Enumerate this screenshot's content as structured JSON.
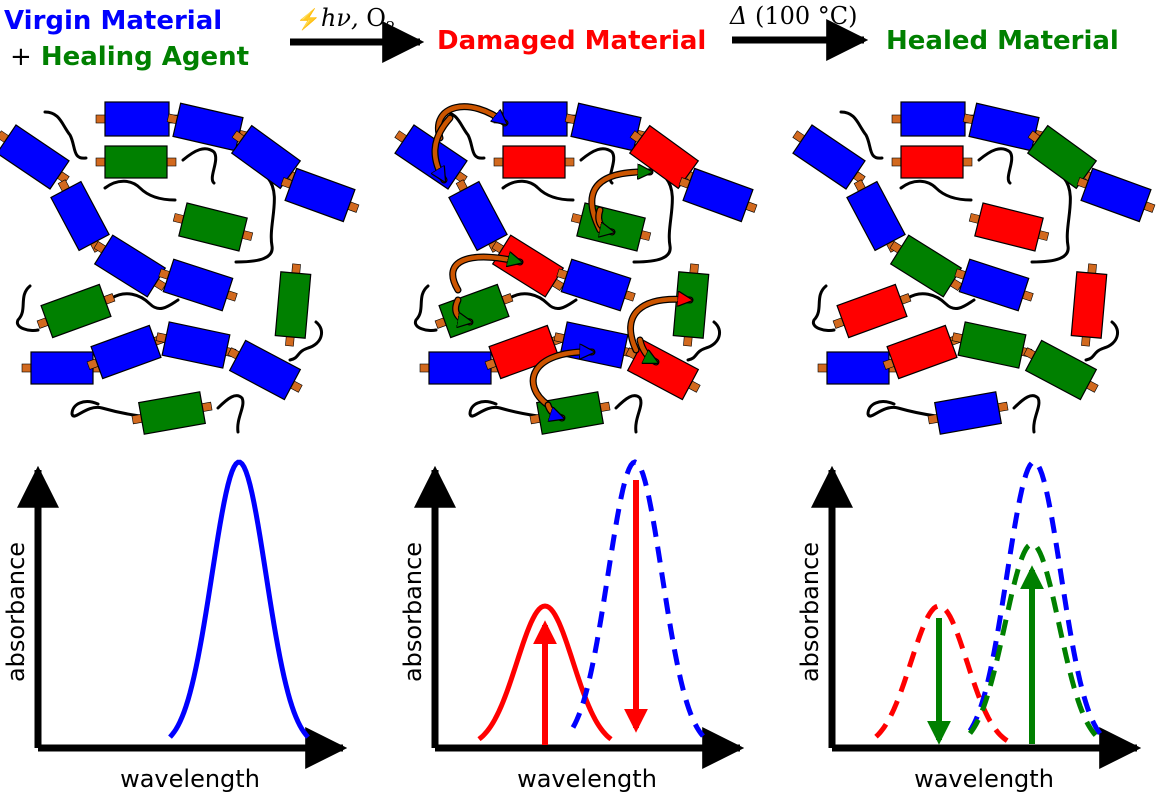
{
  "header": {
    "virgin_material": "Virgin Material",
    "plus": "+",
    "healing_agent": "Healing Agent",
    "step1_symbol": "hν,",
    "step1_gas": "O",
    "step1_gas_sub": "2",
    "damaged_material": "Damaged Material",
    "step2_symbol": "Δ",
    "step2_temp": "(100 °C)",
    "healed_material": "Healed Material"
  },
  "colors": {
    "virgin": "#0000ff",
    "healing_agent": "#008000",
    "damaged": "#ff0000",
    "linker": "#d2691e",
    "arrow": "#cc5500"
  },
  "plots": [
    {
      "id": "virgin",
      "ylabel": "absorbance",
      "xlabel": "wavelength"
    },
    {
      "id": "damaged",
      "ylabel": "absorbance",
      "xlabel": "wavelength"
    },
    {
      "id": "healed",
      "ylabel": "absorbance",
      "xlabel": "wavelength"
    }
  ]
}
